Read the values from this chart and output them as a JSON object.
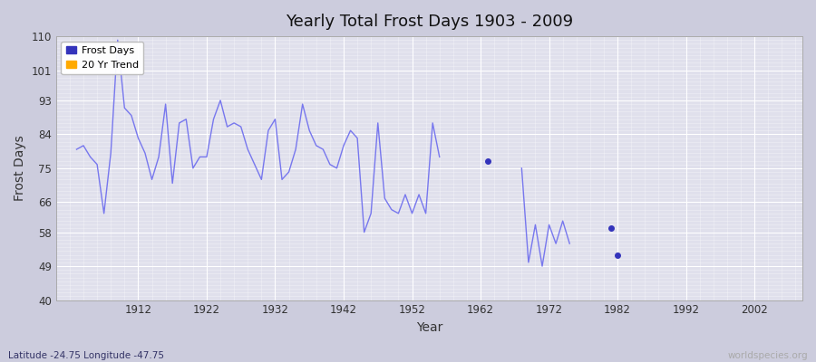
{
  "title": "Yearly Total Frost Days 1903 - 2009",
  "xlabel": "Year",
  "ylabel": "Frost Days",
  "subtitle": "Latitude -24.75 Longitude -47.75",
  "watermark": "worldspecies.org",
  "ylim": [
    40,
    110
  ],
  "yticks": [
    40,
    49,
    58,
    66,
    75,
    84,
    93,
    101,
    110
  ],
  "line_color": "#7777ee",
  "dot_color": "#3333bb",
  "legend_entries": [
    "Frost Days",
    "20 Yr Trend"
  ],
  "legend_colors": [
    "#3333bb",
    "#ffaa00"
  ],
  "fig_bg": "#ccccdd",
  "plot_bg": "#e0e0ec",
  "xlim": [
    1900,
    2009
  ],
  "xticks": [
    1912,
    1922,
    1932,
    1942,
    1952,
    1962,
    1972,
    1982,
    1992,
    2002
  ],
  "seg1_years": [
    1903,
    1904,
    1905,
    1906,
    1907,
    1908,
    1909,
    1910,
    1911,
    1912,
    1913,
    1914,
    1915,
    1916,
    1917,
    1918,
    1919,
    1920,
    1921,
    1922,
    1923,
    1924,
    1925,
    1926,
    1927,
    1928,
    1929,
    1930,
    1931,
    1932,
    1933,
    1934,
    1935,
    1936,
    1937,
    1938,
    1939,
    1940,
    1941,
    1942,
    1943,
    1944,
    1945,
    1946,
    1947,
    1948,
    1949,
    1950,
    1951,
    1952,
    1953,
    1954,
    1955,
    1956
  ],
  "seg1_vals": [
    80,
    81,
    78,
    76,
    63,
    79,
    109,
    91,
    89,
    83,
    79,
    72,
    78,
    92,
    71,
    87,
    88,
    75,
    78,
    78,
    88,
    93,
    86,
    87,
    86,
    80,
    76,
    72,
    85,
    88,
    72,
    74,
    80,
    92,
    85,
    81,
    80,
    76,
    75,
    81,
    85,
    83,
    58,
    63,
    87,
    67,
    64,
    63,
    68,
    63,
    68,
    63,
    87,
    78
  ],
  "seg2_years": [
    1968,
    1969,
    1970,
    1971,
    1972,
    1973,
    1974,
    1975
  ],
  "seg2_vals": [
    75,
    50,
    60,
    49,
    60,
    55,
    61,
    55
  ],
  "dot_years": [
    1963,
    1981,
    1982
  ],
  "dot_vals": [
    77,
    59,
    52
  ]
}
